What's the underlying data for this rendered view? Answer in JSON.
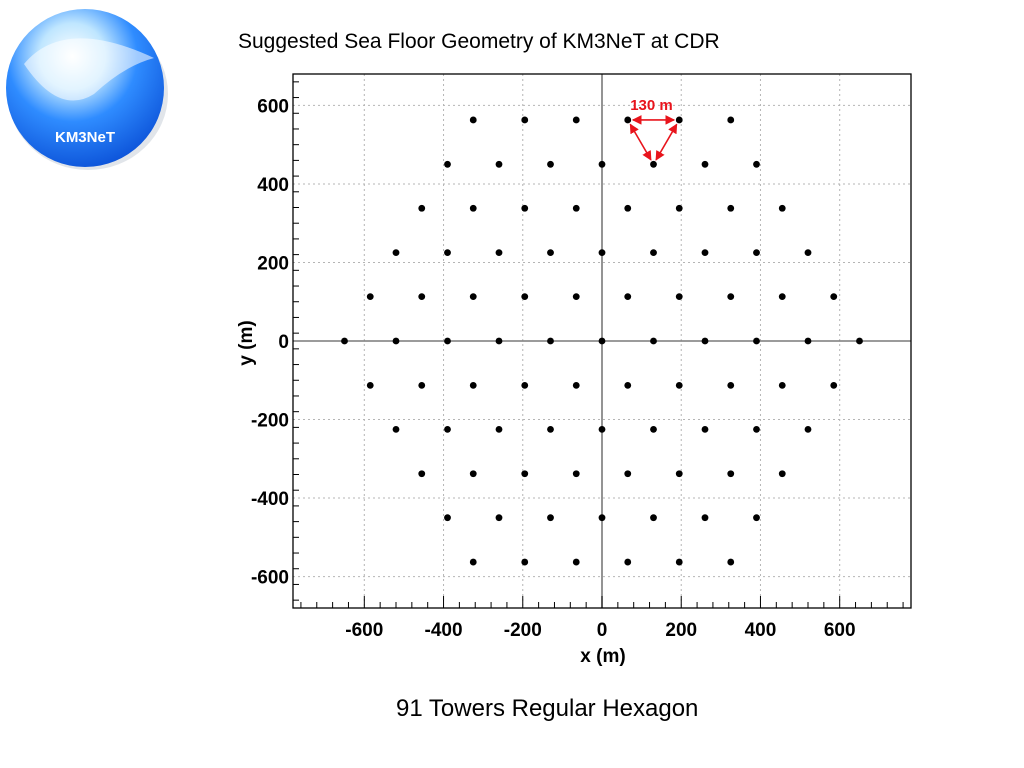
{
  "logo": {
    "text": "KM3NeT",
    "colors": {
      "outer": "#0a4fd6",
      "inner": "#2f8cff",
      "highlight": "#e8f6ff",
      "text": "#ffffff"
    }
  },
  "title": "Suggested Sea Floor Geometry of KM3NeT at CDR",
  "caption": "91 Towers Regular Hexagon",
  "chart_data": {
    "type": "scatter",
    "title": "",
    "xlabel": "x (m)",
    "ylabel": "y (m)",
    "xlim": [
      -780,
      780
    ],
    "ylim": [
      -680,
      680
    ],
    "x_ticks": [
      -600,
      -400,
      -200,
      0,
      200,
      400,
      600
    ],
    "y_ticks": [
      -600,
      -400,
      -200,
      0,
      200,
      400,
      600
    ],
    "x_tick_labels": [
      "-600",
      "-400",
      "-200",
      "0",
      "200",
      "400",
      "600"
    ],
    "y_tick_labels": [
      "-600",
      "-400",
      "-200",
      "0",
      "200",
      "400",
      "600"
    ],
    "grid": true,
    "tower_spacing_m": 130,
    "annotation": {
      "label": "130 m",
      "color": "#e8141c"
    },
    "points": [
      [
        -325,
        563
      ],
      [
        -195,
        563
      ],
      [
        -65,
        563
      ],
      [
        65,
        563
      ],
      [
        195,
        563
      ],
      [
        325,
        563
      ],
      [
        -390,
        450
      ],
      [
        -260,
        450
      ],
      [
        -130,
        450
      ],
      [
        0,
        450
      ],
      [
        130,
        450
      ],
      [
        260,
        450
      ],
      [
        390,
        450
      ],
      [
        -455,
        338
      ],
      [
        -325,
        338
      ],
      [
        -195,
        338
      ],
      [
        -65,
        338
      ],
      [
        65,
        338
      ],
      [
        195,
        338
      ],
      [
        325,
        338
      ],
      [
        455,
        338
      ],
      [
        -520,
        225
      ],
      [
        -390,
        225
      ],
      [
        -260,
        225
      ],
      [
        -130,
        225
      ],
      [
        0,
        225
      ],
      [
        130,
        225
      ],
      [
        260,
        225
      ],
      [
        390,
        225
      ],
      [
        520,
        225
      ],
      [
        -585,
        113
      ],
      [
        -455,
        113
      ],
      [
        -325,
        113
      ],
      [
        -195,
        113
      ],
      [
        -65,
        113
      ],
      [
        65,
        113
      ],
      [
        195,
        113
      ],
      [
        325,
        113
      ],
      [
        455,
        113
      ],
      [
        585,
        113
      ],
      [
        -650,
        0
      ],
      [
        -520,
        0
      ],
      [
        -390,
        0
      ],
      [
        -260,
        0
      ],
      [
        -130,
        0
      ],
      [
        0,
        0
      ],
      [
        130,
        0
      ],
      [
        260,
        0
      ],
      [
        390,
        0
      ],
      [
        520,
        0
      ],
      [
        650,
        0
      ],
      [
        -585,
        -113
      ],
      [
        -455,
        -113
      ],
      [
        -325,
        -113
      ],
      [
        -195,
        -113
      ],
      [
        -65,
        -113
      ],
      [
        65,
        -113
      ],
      [
        195,
        -113
      ],
      [
        325,
        -113
      ],
      [
        455,
        -113
      ],
      [
        585,
        -113
      ],
      [
        -520,
        -225
      ],
      [
        -390,
        -225
      ],
      [
        -260,
        -225
      ],
      [
        -130,
        -225
      ],
      [
        0,
        -225
      ],
      [
        130,
        -225
      ],
      [
        260,
        -225
      ],
      [
        390,
        -225
      ],
      [
        520,
        -225
      ],
      [
        -455,
        -338
      ],
      [
        -325,
        -338
      ],
      [
        -195,
        -338
      ],
      [
        -65,
        -338
      ],
      [
        65,
        -338
      ],
      [
        195,
        -338
      ],
      [
        325,
        -338
      ],
      [
        455,
        -338
      ],
      [
        -390,
        -450
      ],
      [
        -260,
        -450
      ],
      [
        -130,
        -450
      ],
      [
        0,
        -450
      ],
      [
        130,
        -450
      ],
      [
        260,
        -450
      ],
      [
        390,
        -450
      ],
      [
        -325,
        -563
      ],
      [
        -195,
        -563
      ],
      [
        -65,
        -563
      ],
      [
        65,
        -563
      ],
      [
        195,
        -563
      ],
      [
        325,
        -563
      ]
    ]
  }
}
